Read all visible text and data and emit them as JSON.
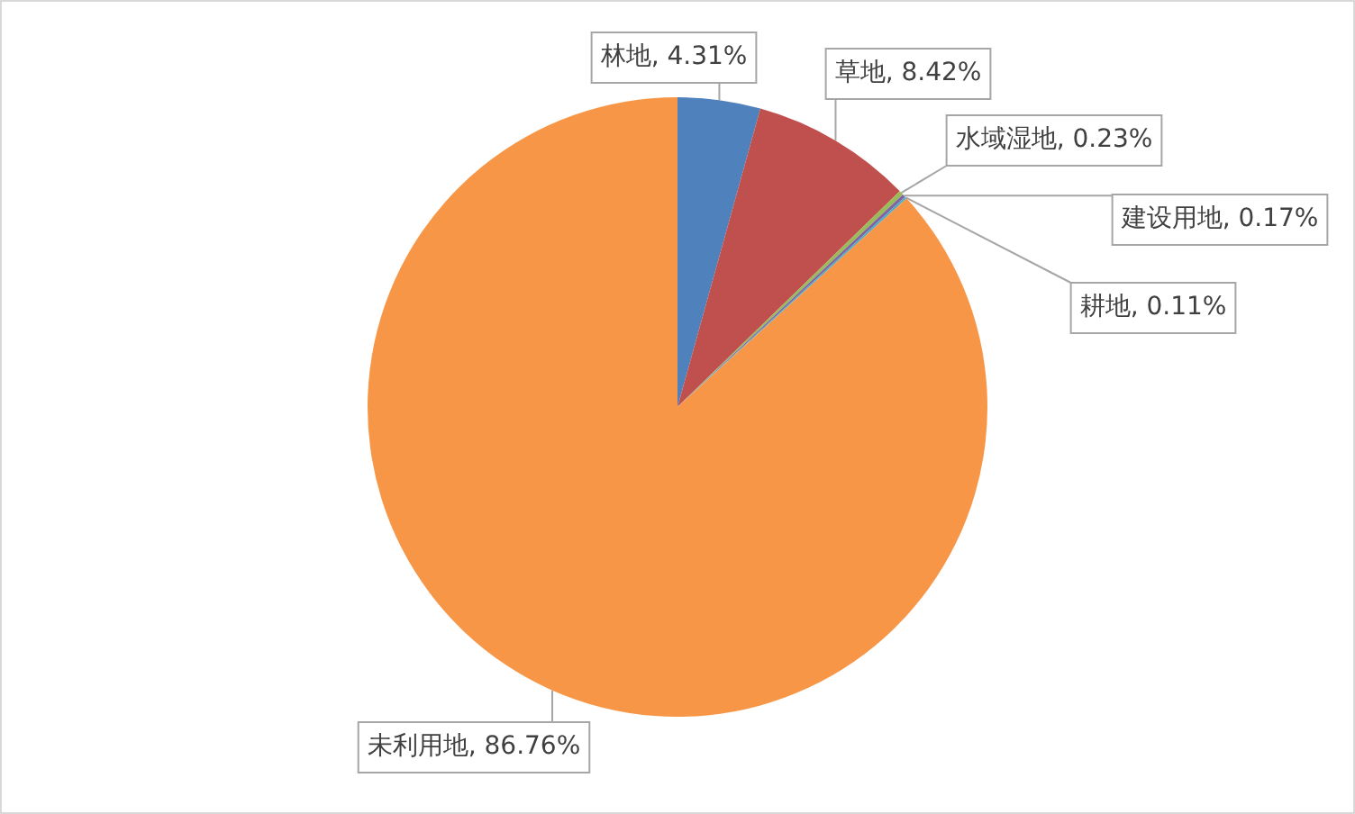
{
  "chart_data": {
    "type": "pie",
    "categories": [
      "林地",
      "草地",
      "水域湿地",
      "建设用地",
      "耕地",
      "未利用地"
    ],
    "values": [
      4.31,
      8.42,
      0.23,
      0.17,
      0.11,
      86.76
    ],
    "colors": [
      "#4f81bd",
      "#c0504d",
      "#9bbb59",
      "#8064a2",
      "#4bacc6",
      "#f79646"
    ],
    "value_labels": [
      "4.31%",
      "8.42%",
      "0.23%",
      "0.17%",
      "0.11%",
      "86.76%"
    ],
    "legend": false
  }
}
